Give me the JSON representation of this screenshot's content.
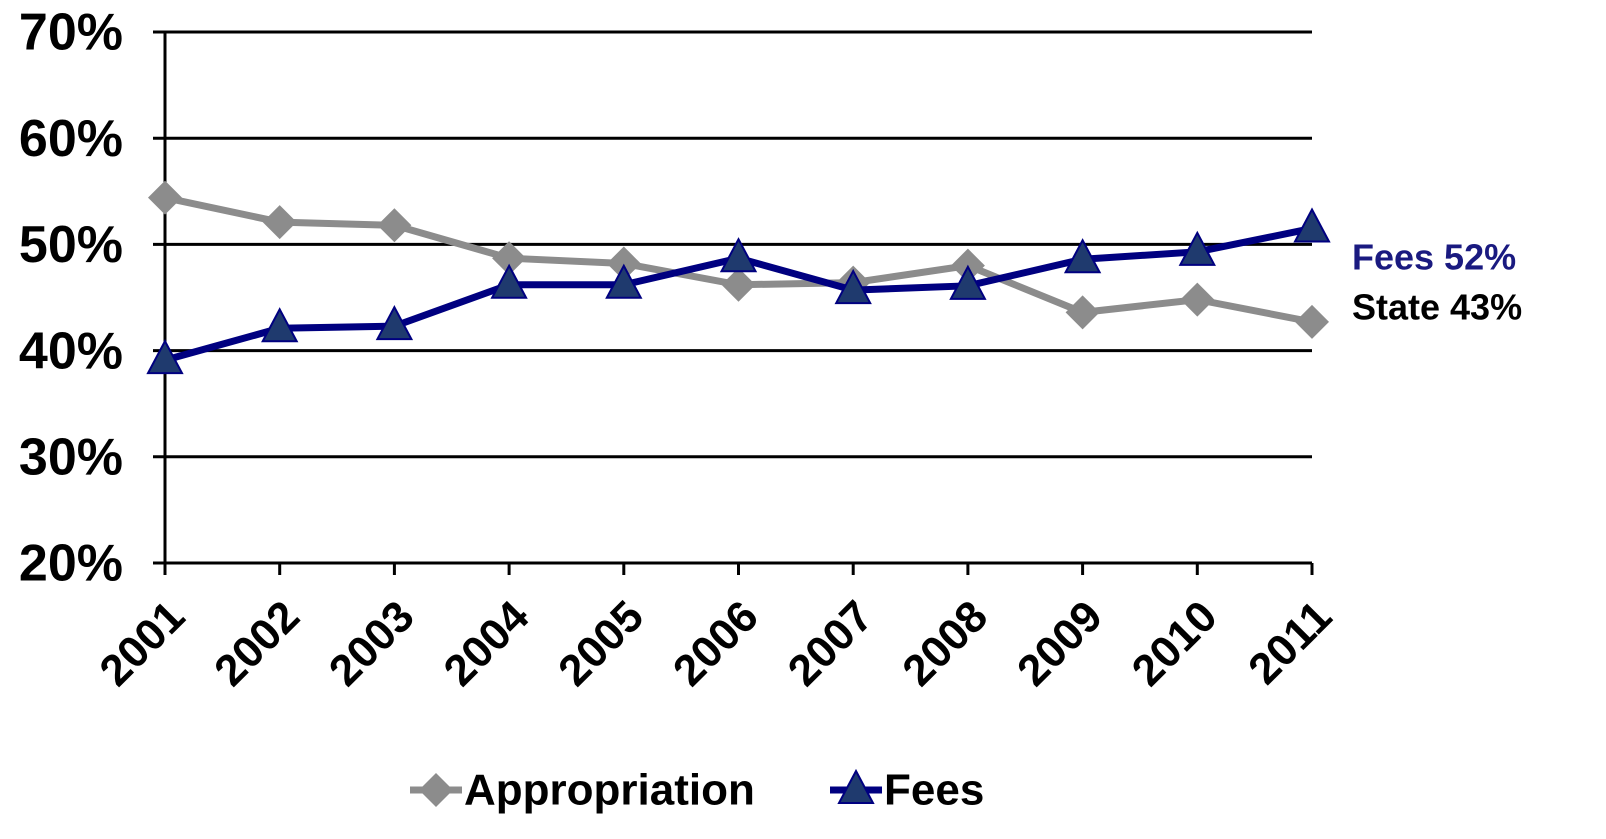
{
  "chart_data": {
    "type": "line",
    "categories": [
      "2001",
      "2002",
      "2003",
      "2004",
      "2005",
      "2006",
      "2007",
      "2008",
      "2009",
      "2010",
      "2011"
    ],
    "series": [
      {
        "name": "Appropriation",
        "color": "#8c8c8c",
        "marker": "diamond",
        "values": [
          54.4,
          52.1,
          51.8,
          48.7,
          48.2,
          46.2,
          46.4,
          48.0,
          43.6,
          44.8,
          42.7
        ]
      },
      {
        "name": "Fees",
        "color": "#000080",
        "marker": "triangle",
        "marker_color": "#1f3a6e",
        "values": [
          39.1,
          42.1,
          42.3,
          46.2,
          46.2,
          48.7,
          45.7,
          46.1,
          48.6,
          49.3,
          51.5
        ]
      }
    ],
    "ylim": [
      20,
      70
    ],
    "yticks": [
      {
        "value": 20,
        "label": "20%"
      },
      {
        "value": 30,
        "label": "30%"
      },
      {
        "value": 40,
        "label": "40%"
      },
      {
        "value": 50,
        "label": "50%"
      },
      {
        "value": 60,
        "label": "60%"
      },
      {
        "value": 70,
        "label": "70%"
      }
    ],
    "grid": true,
    "legend": "bottom",
    "annotations": [
      {
        "text": "Fees 52%",
        "color": "#1a1a80"
      },
      {
        "text": "State 43%",
        "color": "#000000"
      }
    ]
  }
}
